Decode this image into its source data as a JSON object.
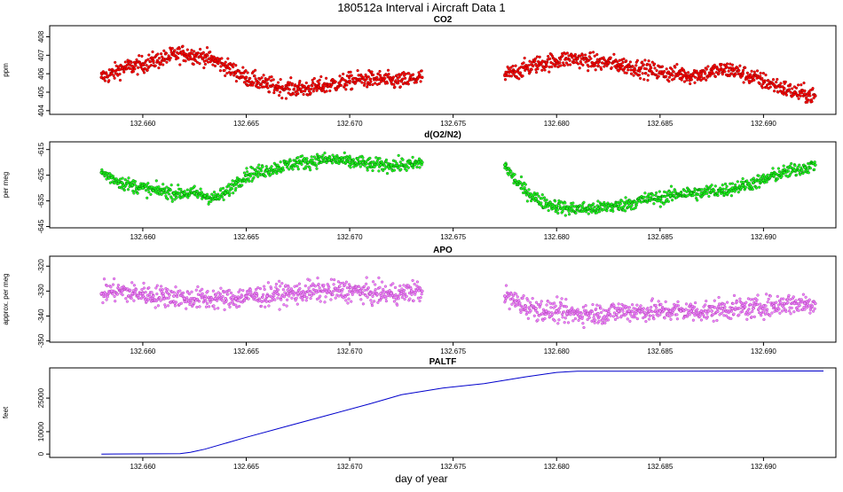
{
  "title": "180512a   Interval i Aircraft Data 1",
  "xlabel": "day of year",
  "colors": {
    "co2": "#ff0000",
    "o2n2": "#00ee00",
    "apo": "#ee66ee",
    "paltf": "#0000cc"
  },
  "chart_data": [
    {
      "type": "scatter",
      "title": "CO2",
      "ylabel": "ppm",
      "xlim": [
        132.6555,
        132.6935
      ],
      "ylim": [
        403.8,
        408.6
      ],
      "xticks": [
        "132.660",
        "132.665",
        "132.670",
        "132.675",
        "132.680",
        "132.685",
        "132.690"
      ],
      "yticks": [
        "404",
        "405",
        "406",
        "407",
        "408"
      ],
      "series": [
        {
          "x": [
            132.658,
            132.6585,
            132.659,
            132.6595,
            132.66,
            132.6605,
            132.661,
            132.6615,
            132.662,
            132.6625,
            132.663,
            132.6635,
            132.664,
            132.6645,
            132.665,
            132.6655,
            132.666,
            132.6665,
            132.667,
            132.6675,
            132.668,
            132.6685,
            132.669,
            132.6695,
            132.67,
            132.6705,
            132.671,
            132.6715,
            132.672,
            132.6725,
            132.673,
            132.6735,
            132.6775,
            132.678,
            132.6785,
            132.679,
            132.6795,
            132.68,
            132.6805,
            132.681,
            132.6815,
            132.682,
            132.6825,
            132.683,
            132.6835,
            132.684,
            132.6845,
            132.685,
            132.6855,
            132.686,
            132.6865,
            132.687,
            132.6875,
            132.688,
            132.6885,
            132.689,
            132.6895,
            132.69,
            132.6905,
            132.691,
            132.6915,
            132.692,
            132.6925
          ],
          "y": [
            405.8,
            406.0,
            406.3,
            406.4,
            406.5,
            406.7,
            406.8,
            407.0,
            407.1,
            407.0,
            406.9,
            406.7,
            406.4,
            406.1,
            405.8,
            405.6,
            405.4,
            405.3,
            405.2,
            405.2,
            405.2,
            405.3,
            405.4,
            405.5,
            405.6,
            405.7,
            405.7,
            405.7,
            405.6,
            405.6,
            405.7,
            405.8,
            405.9,
            406.1,
            406.3,
            406.5,
            406.6,
            406.7,
            406.8,
            406.8,
            406.7,
            406.6,
            406.6,
            406.5,
            406.4,
            406.3,
            406.2,
            406.1,
            406.0,
            406.0,
            405.9,
            406.0,
            406.1,
            406.2,
            406.2,
            406.0,
            405.8,
            405.6,
            405.4,
            405.2,
            405.0,
            404.9,
            404.8
          ]
        }
      ]
    },
    {
      "type": "scatter",
      "title": "d(O2/N2)",
      "ylabel": "per meg",
      "xlim": [
        132.6555,
        132.6935
      ],
      "ylim": [
        -645.5,
        -612
      ],
      "xticks": [
        "132.660",
        "132.665",
        "132.670",
        "132.675",
        "132.680",
        "132.685",
        "132.690"
      ],
      "yticks": [
        "-645",
        "-635",
        "-625",
        "-615"
      ],
      "series": [
        {
          "x": [
            132.658,
            132.6585,
            132.659,
            132.6595,
            132.66,
            132.6605,
            132.661,
            132.6615,
            132.662,
            132.6625,
            132.663,
            132.6635,
            132.664,
            132.6645,
            132.665,
            132.6655,
            132.666,
            132.6665,
            132.667,
            132.6675,
            132.668,
            132.6685,
            132.669,
            132.6695,
            132.67,
            132.6705,
            132.671,
            132.6715,
            132.672,
            132.6725,
            132.673,
            132.6735,
            132.6775,
            132.678,
            132.6785,
            132.679,
            132.6795,
            132.68,
            132.6805,
            132.681,
            132.6815,
            132.682,
            132.6825,
            132.683,
            132.6835,
            132.684,
            132.6845,
            132.685,
            132.6855,
            132.686,
            132.6865,
            132.687,
            132.6875,
            132.688,
            132.6885,
            132.689,
            132.6895,
            132.69,
            132.6905,
            132.691,
            132.6915,
            132.692,
            132.6925
          ],
          "y": [
            -624,
            -626,
            -628,
            -629,
            -630,
            -631,
            -631,
            -632,
            -632,
            -632,
            -633,
            -634,
            -632,
            -628,
            -625,
            -624,
            -623,
            -622,
            -621,
            -620,
            -620,
            -619,
            -619,
            -619,
            -620,
            -620,
            -621,
            -621,
            -621,
            -621,
            -621,
            -620,
            -621,
            -627,
            -631,
            -634,
            -636,
            -637,
            -638,
            -638,
            -638,
            -638,
            -637,
            -637,
            -636,
            -635,
            -634,
            -634,
            -633,
            -632,
            -632,
            -632,
            -631,
            -631,
            -630,
            -629,
            -628,
            -627,
            -625,
            -624,
            -623,
            -622,
            -621
          ]
        }
      ]
    },
    {
      "type": "scatter",
      "title": "APO",
      "ylabel": "approx. per meg",
      "xlim": [
        132.6555,
        132.6935
      ],
      "ylim": [
        -350.5,
        -316
      ],
      "xticks": [
        "132.660",
        "132.665",
        "132.670",
        "132.675",
        "132.680",
        "132.685",
        "132.690"
      ],
      "yticks": [
        "-350",
        "-340",
        "-330",
        "-320"
      ],
      "series": [
        {
          "x": [
            132.658,
            132.6585,
            132.659,
            132.6595,
            132.66,
            132.6605,
            132.661,
            132.6615,
            132.662,
            132.6625,
            132.663,
            132.6635,
            132.664,
            132.6645,
            132.665,
            132.6655,
            132.666,
            132.6665,
            132.667,
            132.6675,
            132.668,
            132.6685,
            132.669,
            132.6695,
            132.67,
            132.6705,
            132.671,
            132.6715,
            132.672,
            132.6725,
            132.673,
            132.6735,
            132.6775,
            132.678,
            132.6785,
            132.679,
            132.6795,
            132.68,
            132.6805,
            132.681,
            132.6815,
            132.682,
            132.6825,
            132.683,
            132.6835,
            132.684,
            132.6845,
            132.685,
            132.6855,
            132.686,
            132.6865,
            132.687,
            132.6875,
            132.688,
            132.6885,
            132.689,
            132.6895,
            132.69,
            132.6905,
            132.691,
            132.6915,
            132.692,
            132.6925
          ],
          "y": [
            -331,
            -330,
            -330,
            -331,
            -331,
            -332,
            -332,
            -332,
            -333,
            -333,
            -333,
            -333,
            -333,
            -333,
            -332,
            -332,
            -332,
            -331,
            -331,
            -331,
            -330,
            -330,
            -330,
            -330,
            -330,
            -330,
            -331,
            -331,
            -331,
            -331,
            -330,
            -330,
            -332,
            -334,
            -336,
            -337,
            -338,
            -338,
            -339,
            -339,
            -339,
            -339,
            -339,
            -338,
            -338,
            -338,
            -338,
            -338,
            -338,
            -338,
            -338,
            -338,
            -338,
            -337,
            -337,
            -337,
            -337,
            -336,
            -336,
            -335,
            -335,
            -335,
            -335
          ]
        }
      ]
    },
    {
      "type": "line",
      "title": "PALTF",
      "ylabel": "feet",
      "xlim": [
        132.6555,
        132.6935
      ],
      "ylim": [
        -1500,
        38500
      ],
      "xticks": [
        "132.660",
        "132.665",
        "132.670",
        "132.675",
        "132.680",
        "132.685",
        "132.690"
      ],
      "yticks": [
        "0",
        "10000",
        "25000"
      ],
      "series": [
        {
          "x": [
            132.658,
            132.6618,
            132.6623,
            132.663,
            132.665,
            132.667,
            132.669,
            132.671,
            132.6725,
            132.6745,
            132.6765,
            132.6785,
            132.68,
            132.681,
            132.683,
            132.6929
          ],
          "y": [
            0,
            200,
            800,
            2200,
            7500,
            12500,
            17500,
            22500,
            26500,
            29500,
            31500,
            34500,
            36500,
            37000,
            37000,
            37100
          ]
        }
      ]
    }
  ]
}
